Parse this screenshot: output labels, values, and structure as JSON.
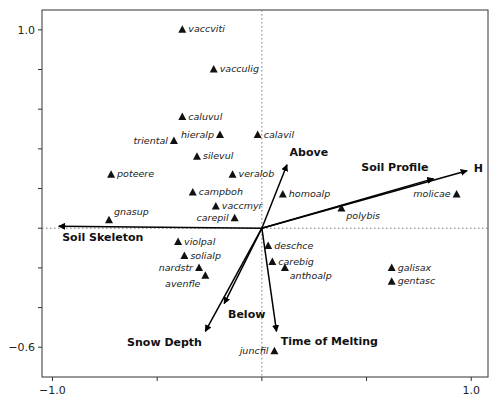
{
  "chart_data": {
    "type": "scatter",
    "labels": [
      "vaccviti",
      "vacculig",
      "caluvul",
      "hieralp",
      "triental",
      "calavil",
      "silevul",
      "poteere",
      "veralob",
      "campboh",
      "homoalp",
      "vaccmyr",
      "gnasup",
      "polybis",
      "molicae",
      "carepil",
      "violpal",
      "deschce",
      "solialp",
      "carebig",
      "nardstr",
      "anthoalp",
      "avenfle",
      "galisax",
      "gentasc",
      "juncfil"
    ],
    "x": [
      -0.38,
      -0.23,
      -0.38,
      -0.2,
      -0.42,
      -0.02,
      -0.31,
      -0.72,
      -0.14,
      -0.33,
      0.1,
      -0.22,
      -0.73,
      0.38,
      0.93,
      -0.13,
      -0.4,
      0.03,
      -0.37,
      0.05,
      -0.3,
      0.11,
      -0.27,
      0.62,
      0.62,
      0.06
    ],
    "y": [
      1.0,
      0.8,
      0.56,
      0.47,
      0.44,
      0.47,
      0.36,
      0.27,
      0.27,
      0.18,
      0.17,
      0.11,
      0.04,
      0.1,
      0.17,
      0.05,
      -0.07,
      -0.09,
      -0.14,
      -0.17,
      -0.2,
      -0.2,
      -0.24,
      -0.2,
      -0.27,
      -0.62
    ],
    "marker": "triangle",
    "color": "#111111",
    "arrows": {
      "labels": [
        "Above",
        "Soil Profile",
        "H",
        "Soil Skeleton",
        "Below",
        "Snow Depth",
        "Time of Melting"
      ],
      "x": [
        0.12,
        0.82,
        0.98,
        -0.97,
        -0.18,
        -0.27,
        0.07
      ],
      "y": [
        0.32,
        0.25,
        0.29,
        0.01,
        -0.38,
        -0.52,
        -0.52
      ],
      "origin_x": 0,
      "origin_y": 0,
      "color": "#000000"
    },
    "reference_lines": {
      "x": 0,
      "y": 0,
      "line_style": "dotted"
    },
    "xlim": [
      -1.05,
      1.08
    ],
    "ylim": [
      -0.75,
      1.1
    ],
    "xticks": [
      {
        "value": -1.0,
        "label": "−1.0"
      },
      {
        "value": -0.5,
        "label": null
      },
      {
        "value": 0.0,
        "label": null
      },
      {
        "value": 0.5,
        "label": null
      },
      {
        "value": 1.0,
        "label": "1.0"
      }
    ],
    "yticks": [
      {
        "value": -0.6,
        "label": "−0.6"
      },
      {
        "value": -0.4,
        "label": null
      },
      {
        "value": -0.2,
        "label": null
      },
      {
        "value": 0.0,
        "label": null
      },
      {
        "value": 0.2,
        "label": null
      },
      {
        "value": 0.4,
        "label": null
      },
      {
        "value": 0.6,
        "label": null
      },
      {
        "value": 0.8,
        "label": null
      },
      {
        "value": 1.0,
        "label": "1.0"
      }
    ],
    "grid": false
  }
}
